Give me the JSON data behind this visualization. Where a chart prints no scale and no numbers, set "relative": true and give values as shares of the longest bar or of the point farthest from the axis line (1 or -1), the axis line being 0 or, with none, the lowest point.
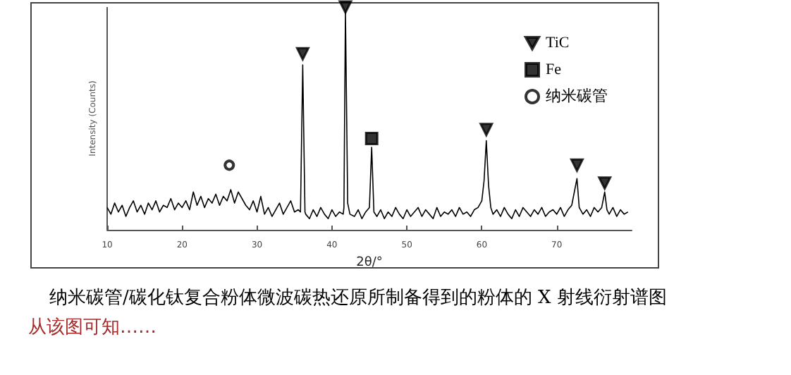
{
  "chart_data": {
    "type": "line",
    "relative": true,
    "title": "纳米碳管/碳化钛复合粉体微波碳热还原所制备得到的粉体的 X 射线衍射谱图",
    "annotations": [
      "从该图可知……"
    ],
    "xlabel": "2θ/°",
    "ylabel": "Intensity (Counts)",
    "xlim": [
      10,
      80
    ],
    "xticks": [
      10,
      20,
      30,
      40,
      50,
      60,
      70
    ],
    "grid": false,
    "legend": "top right",
    "series": [
      {
        "color": "#000000",
        "marker": "none",
        "x": [
          10,
          10.5,
          11,
          11.5,
          12,
          12.5,
          13,
          13.5,
          14,
          14.5,
          15,
          15.5,
          16,
          16.5,
          17,
          17.5,
          18,
          18.5,
          19,
          19.5,
          20,
          20.5,
          21,
          21.5,
          22,
          22.5,
          23,
          23.5,
          24,
          24.5,
          25,
          25.5,
          26,
          26.5,
          27,
          27.5,
          28,
          28.5,
          29,
          29.5,
          30,
          30.5,
          31,
          31.5,
          32,
          32.5,
          33,
          33.5,
          34,
          34.5,
          35,
          35.5,
          35.8,
          36.1,
          36.4,
          36.5,
          37,
          37.5,
          38,
          38.5,
          39,
          39.5,
          40,
          40.5,
          41,
          41.5,
          41.6,
          41.8,
          42.1,
          42.4,
          43,
          43.5,
          44,
          44.5,
          45,
          45.3,
          45.6,
          46,
          46.5,
          47,
          47.5,
          48,
          48.5,
          49,
          49.5,
          50,
          50.5,
          51,
          51.5,
          52,
          52.5,
          53,
          53.5,
          54,
          54.5,
          55,
          55.5,
          56,
          56.5,
          57,
          57.5,
          58,
          58.5,
          59,
          59.5,
          60,
          60.3,
          60.6,
          60.9,
          61.2,
          61.5,
          62,
          62.5,
          63,
          63.5,
          64,
          64.5,
          65,
          65.5,
          66,
          66.5,
          67,
          67.5,
          68,
          68.5,
          69,
          69.5,
          70,
          70.5,
          71,
          71.5,
          72,
          72.7,
          73,
          73.5,
          74,
          74.5,
          75,
          75.5,
          76,
          76.4,
          76.7,
          77,
          77.5,
          78,
          78.5,
          79,
          79.5
        ],
        "values": [
          0.1,
          0.07,
          0.12,
          0.08,
          0.11,
          0.06,
          0.1,
          0.13,
          0.08,
          0.11,
          0.07,
          0.12,
          0.09,
          0.13,
          0.08,
          0.11,
          0.1,
          0.14,
          0.09,
          0.12,
          0.1,
          0.13,
          0.09,
          0.17,
          0.11,
          0.15,
          0.1,
          0.14,
          0.12,
          0.16,
          0.11,
          0.15,
          0.13,
          0.18,
          0.12,
          0.17,
          0.14,
          0.11,
          0.09,
          0.13,
          0.08,
          0.15,
          0.07,
          0.1,
          0.06,
          0.09,
          0.12,
          0.07,
          0.1,
          0.13,
          0.08,
          0.09,
          0.08,
          0.74,
          0.08,
          0.07,
          0.05,
          0.09,
          0.06,
          0.1,
          0.07,
          0.05,
          0.09,
          0.06,
          0.08,
          0.07,
          0.1,
          0.98,
          0.12,
          0.07,
          0.06,
          0.09,
          0.05,
          0.08,
          0.1,
          0.37,
          0.08,
          0.06,
          0.09,
          0.05,
          0.08,
          0.06,
          0.1,
          0.07,
          0.05,
          0.09,
          0.06,
          0.08,
          0.1,
          0.06,
          0.09,
          0.07,
          0.05,
          0.1,
          0.06,
          0.08,
          0.07,
          0.09,
          0.06,
          0.1,
          0.07,
          0.08,
          0.06,
          0.09,
          0.1,
          0.13,
          0.22,
          0.4,
          0.2,
          0.1,
          0.07,
          0.09,
          0.06,
          0.1,
          0.07,
          0.05,
          0.09,
          0.06,
          0.1,
          0.08,
          0.06,
          0.09,
          0.07,
          0.1,
          0.06,
          0.08,
          0.09,
          0.07,
          0.1,
          0.06,
          0.09,
          0.11,
          0.23,
          0.1,
          0.07,
          0.09,
          0.06,
          0.1,
          0.08,
          0.1,
          0.17,
          0.09,
          0.07,
          0.1,
          0.06,
          0.09,
          0.07,
          0.08
        ]
      },
      {
        "type": "scatter",
        "name": "TiC",
        "color": "#000000",
        "marker": "triangle",
        "x": [
          36.1,
          41.8,
          60.6,
          72.7,
          76.4
        ],
        "values": [
          0.79,
          1,
          0.45,
          0.29,
          0.21
        ]
      },
      {
        "type": "scatter",
        "name": "Fe",
        "color": "#000000",
        "marker": "square",
        "x": [
          45.3
        ],
        "values": [
          0.41
        ]
      },
      {
        "type": "scatter",
        "name": "纳米碳管",
        "color": "#000000",
        "marker": "circle",
        "x": [
          26.3
        ],
        "values": [
          0.29
        ]
      }
    ]
  }
}
